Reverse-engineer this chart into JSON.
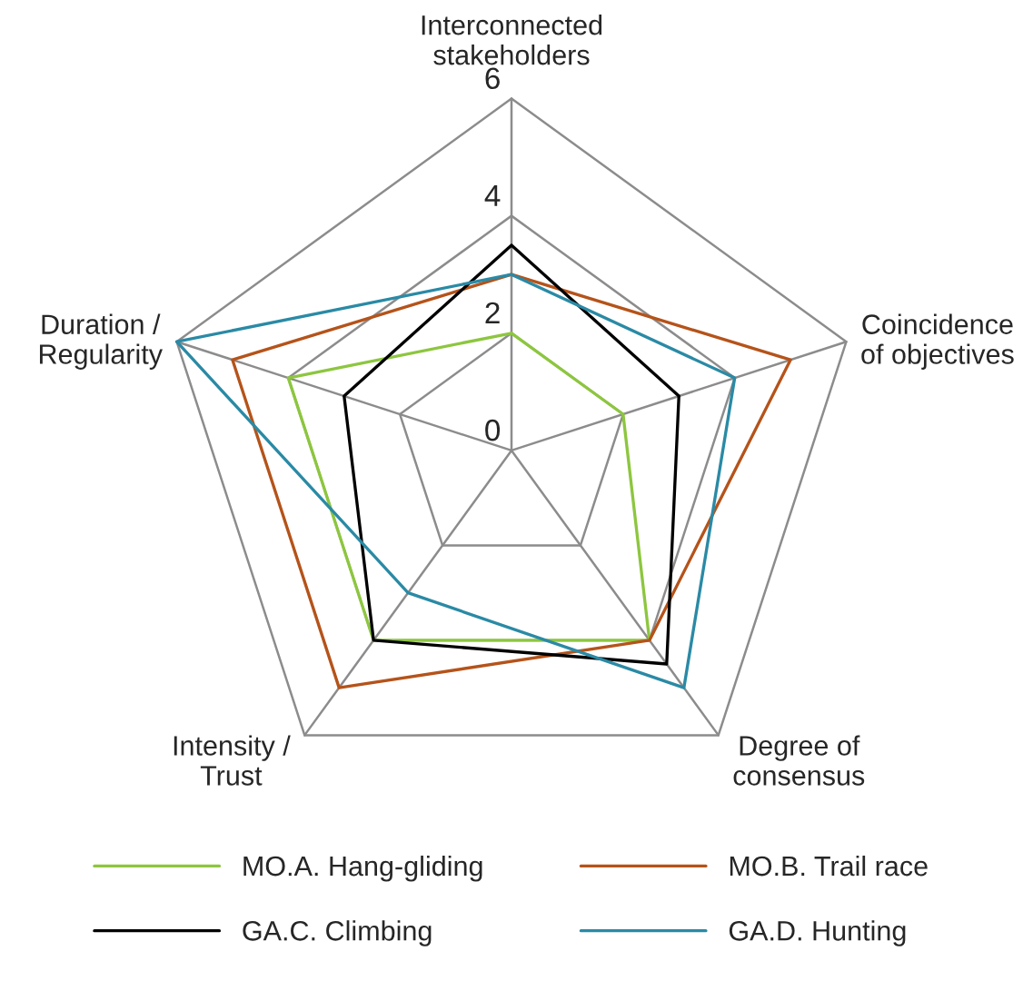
{
  "chart_data": {
    "type": "radar",
    "categories": [
      "Interconnected\nstakeholders",
      "Coincidence\nof objectives",
      "Degree of\nconsensus",
      "Intensity /\nTrust",
      "Duration /\nRegularity"
    ],
    "series": [
      {
        "name": "MO.A. Hang-gliding",
        "color": "#8dc63f",
        "values": [
          2,
          2,
          4,
          4,
          4
        ]
      },
      {
        "name": "MO.B. Trail race",
        "color": "#b5531a",
        "values": [
          3,
          5,
          4,
          5,
          5
        ]
      },
      {
        "name": "GA.C. Climbing",
        "color": "#000000",
        "values": [
          3.5,
          3,
          4.5,
          4,
          3
        ]
      },
      {
        "name": "GA.D. Hunting",
        "color": "#2a8aa5",
        "values": [
          3,
          4,
          5,
          3,
          6
        ]
      }
    ],
    "ylim": [
      0,
      6
    ],
    "yticks": [
      0,
      2,
      4,
      6
    ],
    "grid": true,
    "legend": "bottom",
    "marker": "none",
    "line_style": "solid"
  }
}
